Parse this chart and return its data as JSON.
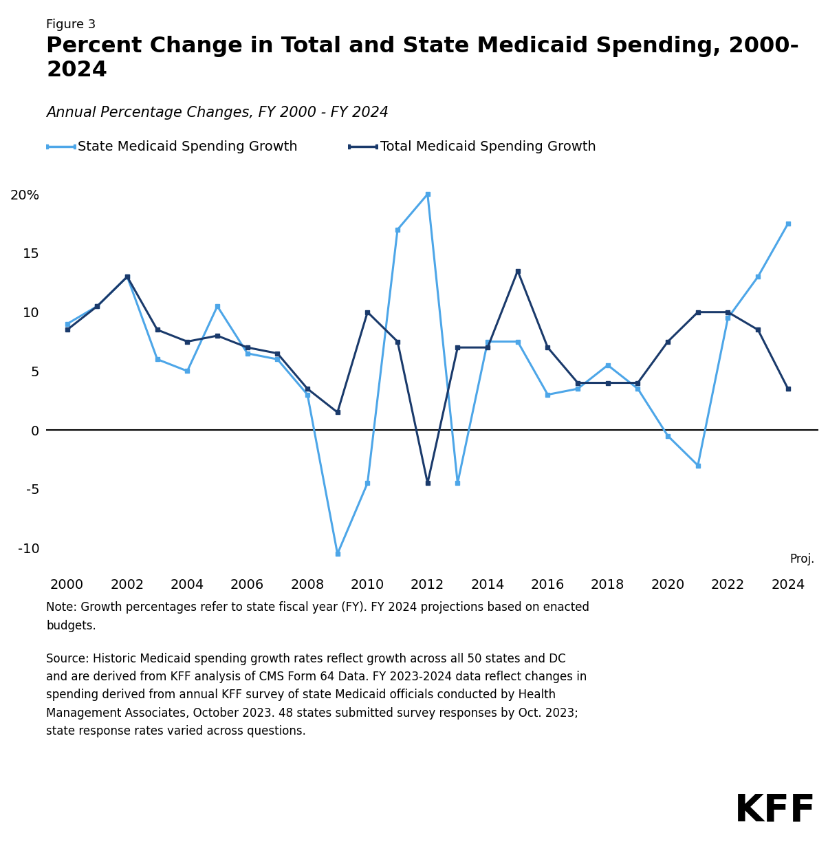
{
  "figure_label": "Figure 3",
  "title": "Percent Change in Total and State Medicaid Spending, 2000-\n2024",
  "subtitle": "Annual Percentage Changes, FY 2000 - FY 2024",
  "legend": {
    "state_label": "State Medicaid Spending Growth",
    "total_label": "Total Medicaid Spending Growth"
  },
  "years": [
    2000,
    2001,
    2002,
    2003,
    2004,
    2005,
    2006,
    2007,
    2008,
    2009,
    2010,
    2011,
    2012,
    2013,
    2014,
    2015,
    2016,
    2017,
    2018,
    2019,
    2020,
    2021,
    2022,
    2023,
    2024
  ],
  "state_spending": [
    9.0,
    10.5,
    13.0,
    6.0,
    5.0,
    10.5,
    6.5,
    6.0,
    3.0,
    -10.5,
    -4.5,
    17.0,
    20.0,
    -4.5,
    7.5,
    7.5,
    3.0,
    3.5,
    5.5,
    3.5,
    -0.5,
    -3.0,
    9.5,
    13.0,
    17.5
  ],
  "total_spending": [
    8.5,
    10.5,
    13.0,
    8.5,
    7.5,
    8.0,
    7.0,
    6.5,
    3.5,
    1.5,
    10.0,
    7.5,
    -4.5,
    7.0,
    7.0,
    13.5,
    7.0,
    4.0,
    4.0,
    4.0,
    7.5,
    10.0,
    10.0,
    8.5,
    3.5
  ],
  "state_color": "#4da6e8",
  "total_color": "#1a3a6b",
  "ylim": [
    -12,
    22
  ],
  "yticks": [
    -10,
    -5,
    0,
    5,
    10,
    15,
    20
  ],
  "note_text": "Note: Growth percentages refer to state fiscal year (FY). FY 2024 projections based on enacted\nbudgets.",
  "source_text": "Source: Historic Medicaid spending growth rates reflect growth across all 50 states and DC\nand are derived from KFF analysis of CMS Form 64 Data. FY 2023-2024 data reflect changes in\nspending derived from annual KFF survey of state Medicaid officials conducted by Health\nManagement Associates, October 2023. 48 states submitted survey responses by Oct. 2023;\nstate response rates varied across questions.",
  "background_color": "#ffffff",
  "line_width": 2.2,
  "marker_size": 5
}
